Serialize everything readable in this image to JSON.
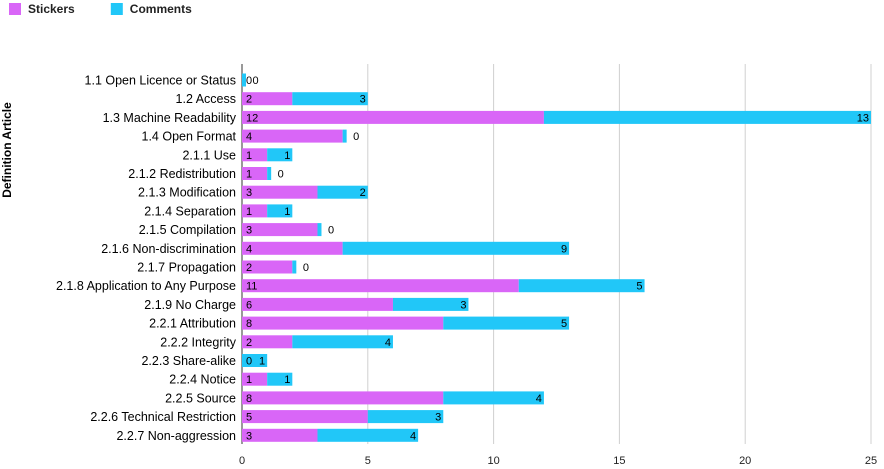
{
  "chart_data": {
    "type": "bar",
    "orientation": "horizontal",
    "stacked": true,
    "title": "",
    "xlabel": "",
    "ylabel": "Definition Article",
    "xlim": [
      0,
      25
    ],
    "xticks": [
      "0",
      "5",
      "10",
      "15",
      "20",
      "25"
    ],
    "grid": true,
    "legend_position": "top-left",
    "categories": [
      "1.1 Open Licence or Status",
      "1.2 Access",
      "1.3 Machine Readability",
      "1.4 Open Format",
      "2.1.1 Use",
      "2.1.2 Redistribution",
      "2.1.3 Modification",
      "2.1.4 Separation",
      "2.1.5 Compilation",
      "2.1.6 Non-discrimination",
      "2.1.7 Propagation",
      "2.1.8 Application to Any Purpose",
      "2.1.9 No Charge",
      "2.2.1 Attribution",
      "2.2.2 Integrity",
      "2.2.3 Share-alike",
      "2.2.4 Notice",
      "2.2.5 Source",
      "2.2.6 Technical Restriction",
      "2.2.7 Non-aggression"
    ],
    "series": [
      {
        "name": "Stickers",
        "color": "#d966f7",
        "values": [
          0,
          2,
          12,
          4,
          1,
          1,
          3,
          1,
          3,
          4,
          2,
          11,
          6,
          8,
          2,
          0,
          1,
          8,
          5,
          3
        ],
        "labels": [
          "0",
          "2",
          "12",
          "4",
          "1",
          "1",
          "3",
          "1",
          "3",
          "4",
          "2",
          "11",
          "6",
          "8",
          "2",
          "0",
          "1",
          "8",
          "5",
          "3"
        ]
      },
      {
        "name": "Comments",
        "color": "#21c7f8",
        "values": [
          0,
          3,
          13,
          0,
          1,
          0,
          2,
          1,
          0,
          9,
          0,
          5,
          3,
          5,
          4,
          1,
          1,
          4,
          3,
          4
        ],
        "labels": [
          "0",
          "3",
          "13",
          "0",
          "1",
          "0",
          "2",
          "1",
          "0",
          "9",
          "0",
          "5",
          "3",
          "5",
          "4",
          "1",
          "1",
          "4",
          "3",
          "4"
        ]
      }
    ]
  }
}
